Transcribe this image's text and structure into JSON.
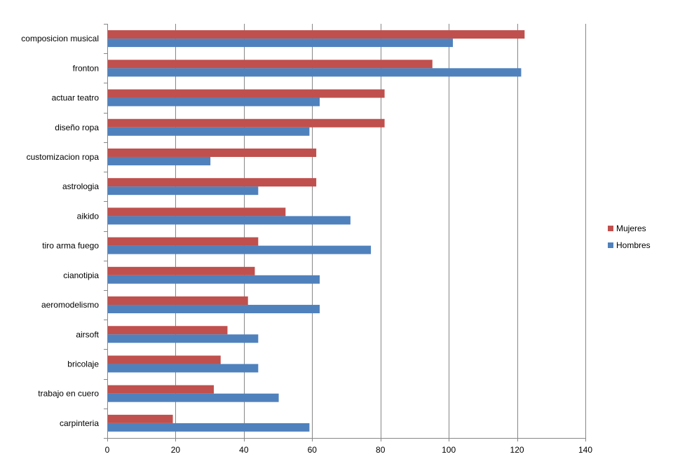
{
  "chart_data": {
    "type": "bar",
    "orientation": "horizontal",
    "categories": [
      "composicion musical",
      "fronton",
      "actuar teatro",
      "diseño ropa",
      "customizacion ropa",
      "astrologia",
      "aikido",
      "tiro arma fuego",
      "cianotipia",
      "aeromodelismo",
      "airsoft",
      "bricolaje",
      "trabajo en cuero",
      "carpinteria"
    ],
    "series": [
      {
        "name": "Mujeres",
        "color": "#c0504d",
        "values": [
          122,
          95,
          81,
          81,
          61,
          61,
          52,
          44,
          43,
          41,
          35,
          33,
          31,
          19
        ]
      },
      {
        "name": "Hombres",
        "color": "#4f81bd",
        "values": [
          101,
          121,
          62,
          59,
          30,
          44,
          71,
          77,
          62,
          62,
          44,
          44,
          50,
          59
        ]
      }
    ],
    "xlim": [
      0,
      140
    ],
    "ticks": [
      "0",
      "20",
      "40",
      "60",
      "80",
      "100",
      "120",
      "140"
    ],
    "grid": true,
    "legend_position": "right"
  }
}
